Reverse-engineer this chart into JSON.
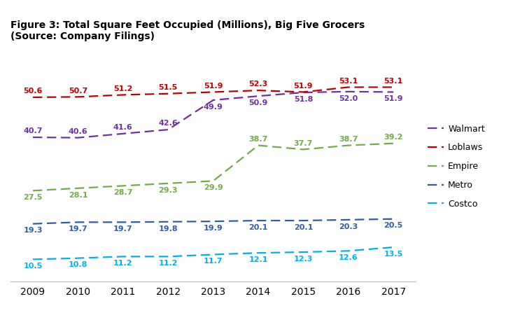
{
  "title": "Figure 3: Total Square Feet Occupied (Millions), Big Five Grocers\n(Source: Company Filings)",
  "years": [
    2009,
    2010,
    2011,
    2012,
    2013,
    2014,
    2015,
    2016,
    2017
  ],
  "series": {
    "Walmart": {
      "values": [
        40.7,
        40.6,
        41.6,
        42.6,
        49.9,
        50.9,
        51.8,
        52.0,
        51.9
      ],
      "color": "#7030A0"
    },
    "Loblaws": {
      "values": [
        50.6,
        50.7,
        51.2,
        51.5,
        51.9,
        52.3,
        51.9,
        53.1,
        53.1
      ],
      "color": "#C00000"
    },
    "Empire": {
      "values": [
        27.5,
        28.1,
        28.7,
        29.3,
        29.9,
        38.7,
        37.7,
        38.7,
        39.2
      ],
      "color": "#70AD47"
    },
    "Metro": {
      "values": [
        19.3,
        19.7,
        19.7,
        19.8,
        19.9,
        20.1,
        20.1,
        20.3,
        20.5
      ],
      "color": "#2E5FA3"
    },
    "Costco": {
      "values": [
        10.5,
        10.8,
        11.2,
        11.2,
        11.7,
        12.1,
        12.3,
        12.6,
        13.5
      ],
      "color": "#00B0F0"
    }
  },
  "label_y_offset": {
    "Walmart": [
      1.5,
      1.5,
      1.5,
      1.5,
      -1.7,
      -1.7,
      -1.7,
      -1.7,
      -1.7
    ],
    "Loblaws": [
      1.5,
      1.5,
      1.5,
      1.5,
      1.5,
      1.5,
      1.5,
      1.5,
      1.5
    ],
    "Empire": [
      -1.7,
      -1.7,
      -1.7,
      -1.7,
      -1.7,
      1.5,
      1.5,
      1.5,
      1.5
    ],
    "Metro": [
      -1.7,
      -1.7,
      -1.7,
      -1.7,
      -1.7,
      -1.7,
      -1.7,
      -1.7,
      -1.7
    ],
    "Costco": [
      -1.7,
      -1.7,
      -1.7,
      -1.7,
      -1.7,
      -1.7,
      -1.7,
      -1.7,
      -1.7
    ]
  },
  "series_order": [
    "Walmart",
    "Loblaws",
    "Empire",
    "Metro",
    "Costco"
  ],
  "xlim": [
    2008.5,
    2017.5
  ],
  "ylim": [
    5,
    62
  ],
  "figsize": [
    7.43,
    4.57
  ],
  "dpi": 100,
  "background_color": "#FFFFFF",
  "title_fontsize": 10,
  "label_fontsize": 8,
  "tick_fontsize": 10,
  "legend_fontsize": 9
}
